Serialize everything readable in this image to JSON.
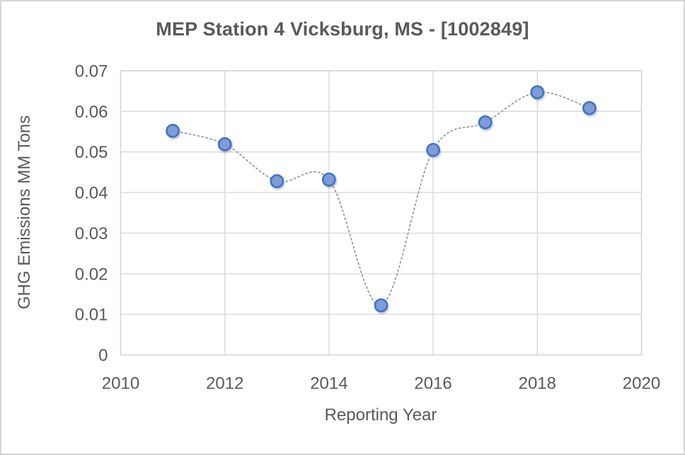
{
  "window": {
    "background_color": "#ffffff",
    "border_color": "#d4d4d4"
  },
  "chart_data": {
    "type": "scatter",
    "title": "MEP Station 4 Vicksburg, MS - [1002849]",
    "xlabel": "Reporting Year",
    "ylabel": "GHG Emissions MM Tons",
    "x": [
      2011,
      2012,
      2013,
      2014,
      2015,
      2016,
      2017,
      2018,
      2019
    ],
    "y": [
      0.0552,
      0.0519,
      0.0428,
      0.0432,
      0.0122,
      0.0505,
      0.0573,
      0.0647,
      0.0608
    ],
    "xlim": [
      2010,
      2020
    ],
    "ylim": [
      0,
      0.07
    ],
    "x_tick_values": [
      2010,
      2012,
      2014,
      2016,
      2018,
      2020
    ],
    "x_tick_labels": [
      "2010",
      "2012",
      "2014",
      "2016",
      "2018",
      "2020"
    ],
    "y_tick_values": [
      0,
      0.01,
      0.02,
      0.03,
      0.04,
      0.05,
      0.06,
      0.07
    ],
    "y_tick_labels": [
      "0",
      "0.01",
      "0.02",
      "0.03",
      "0.04",
      "0.05",
      "0.06",
      "0.07"
    ],
    "grid": true,
    "legend": "none",
    "line_style": "dotted-smooth",
    "marker_shape": "circle",
    "colors": {
      "marker_fill": "#7d9dd9",
      "marker_stroke": "#4472c4",
      "line": "#9e9e9e",
      "gridline": "#d9d9d9",
      "plot_border": "#d3d3d3",
      "text": "#595959",
      "title_text": "#595959"
    }
  }
}
